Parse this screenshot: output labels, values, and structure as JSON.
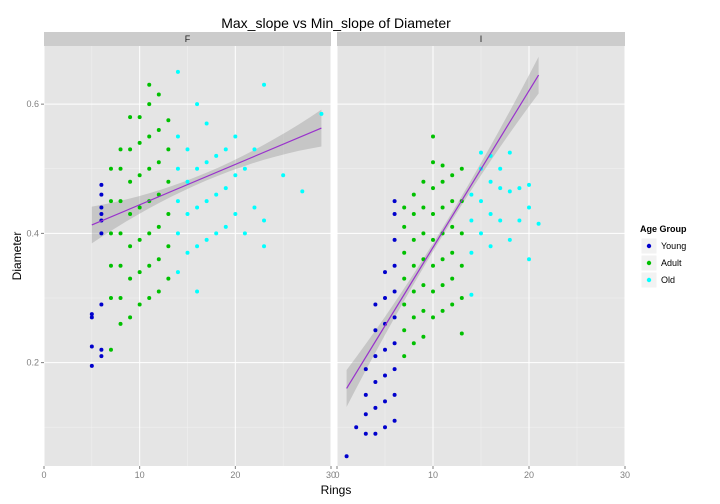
{
  "chart_data": {
    "type": "scatter",
    "title": "Max_slope vs Min_slope of Diameter",
    "xlabel": "Rings",
    "ylabel": "Diameter",
    "xlim": [
      0,
      30
    ],
    "ylim": [
      0.04,
      0.69
    ],
    "x_ticks": [
      0,
      10,
      20,
      30
    ],
    "y_ticks": [
      0.2,
      0.4,
      0.6
    ],
    "x_tick_labels": [
      "0",
      "10",
      "20",
      "30"
    ],
    "y_tick_labels": [
      "0.2",
      "0.4",
      "0.6"
    ],
    "grid": true,
    "legend": {
      "title": "Age Group",
      "position": "right",
      "entries": [
        {
          "name": "Young",
          "color": "#0000cc"
        },
        {
          "name": "Adult",
          "color": "#00c000"
        },
        {
          "name": "Old",
          "color": "#00ffff"
        }
      ]
    },
    "panels": [
      {
        "label": "F",
        "trend_line": {
          "x": [
            5,
            29
          ],
          "y": [
            0.413,
            0.563
          ],
          "color": "#9932cc"
        },
        "series": [
          {
            "name": "Young",
            "color": "#0000cc",
            "points": [
              [
                5,
                0.195
              ],
              [
                5,
                0.225
              ],
              [
                5,
                0.27
              ],
              [
                5,
                0.275
              ],
              [
                6,
                0.21
              ],
              [
                6,
                0.22
              ],
              [
                6,
                0.29
              ],
              [
                6,
                0.4
              ],
              [
                6,
                0.42
              ],
              [
                6,
                0.43
              ],
              [
                6,
                0.44
              ],
              [
                6,
                0.46
              ],
              [
                6,
                0.475
              ]
            ]
          },
          {
            "name": "Adult",
            "color": "#00c000",
            "points": [
              [
                7,
                0.22
              ],
              [
                7,
                0.3
              ],
              [
                7,
                0.35
              ],
              [
                7,
                0.4
              ],
              [
                7,
                0.45
              ],
              [
                7,
                0.5
              ],
              [
                8,
                0.26
              ],
              [
                8,
                0.3
              ],
              [
                8,
                0.35
              ],
              [
                8,
                0.4
              ],
              [
                8,
                0.45
              ],
              [
                8,
                0.5
              ],
              [
                8,
                0.53
              ],
              [
                9,
                0.27
              ],
              [
                9,
                0.33
              ],
              [
                9,
                0.38
              ],
              [
                9,
                0.43
              ],
              [
                9,
                0.48
              ],
              [
                9,
                0.53
              ],
              [
                9,
                0.58
              ],
              [
                10,
                0.29
              ],
              [
                10,
                0.34
              ],
              [
                10,
                0.39
              ],
              [
                10,
                0.44
              ],
              [
                10,
                0.49
              ],
              [
                10,
                0.54
              ],
              [
                10,
                0.58
              ],
              [
                11,
                0.3
              ],
              [
                11,
                0.35
              ],
              [
                11,
                0.4
              ],
              [
                11,
                0.45
              ],
              [
                11,
                0.5
              ],
              [
                11,
                0.55
              ],
              [
                11,
                0.6
              ],
              [
                11,
                0.63
              ],
              [
                12,
                0.31
              ],
              [
                12,
                0.36
              ],
              [
                12,
                0.41
              ],
              [
                12,
                0.46
              ],
              [
                12,
                0.51
              ],
              [
                12,
                0.56
              ],
              [
                12,
                0.615
              ],
              [
                13,
                0.33
              ],
              [
                13,
                0.38
              ],
              [
                13,
                0.43
              ],
              [
                13,
                0.48
              ],
              [
                13,
                0.53
              ],
              [
                13,
                0.575
              ]
            ]
          },
          {
            "name": "Old",
            "color": "#00ffff",
            "points": [
              [
                14,
                0.34
              ],
              [
                14,
                0.4
              ],
              [
                14,
                0.45
              ],
              [
                14,
                0.5
              ],
              [
                14,
                0.55
              ],
              [
                14,
                0.65
              ],
              [
                15,
                0.37
              ],
              [
                15,
                0.43
              ],
              [
                15,
                0.48
              ],
              [
                15,
                0.53
              ],
              [
                16,
                0.31
              ],
              [
                16,
                0.38
              ],
              [
                16,
                0.44
              ],
              [
                16,
                0.5
              ],
              [
                16,
                0.6
              ],
              [
                17,
                0.39
              ],
              [
                17,
                0.45
              ],
              [
                17,
                0.51
              ],
              [
                17,
                0.57
              ],
              [
                18,
                0.4
              ],
              [
                18,
                0.46
              ],
              [
                18,
                0.52
              ],
              [
                19,
                0.41
              ],
              [
                19,
                0.47
              ],
              [
                19,
                0.53
              ],
              [
                20,
                0.43
              ],
              [
                20,
                0.49
              ],
              [
                20,
                0.55
              ],
              [
                21,
                0.4
              ],
              [
                21,
                0.5
              ],
              [
                22,
                0.44
              ],
              [
                22,
                0.53
              ],
              [
                23,
                0.38
              ],
              [
                23,
                0.42
              ],
              [
                23,
                0.63
              ],
              [
                25,
                0.49
              ],
              [
                27,
                0.465
              ],
              [
                29,
                0.585
              ]
            ]
          }
        ]
      },
      {
        "label": "I",
        "trend_line": {
          "x": [
            1,
            21
          ],
          "y": [
            0.16,
            0.645
          ],
          "color": "#9932cc"
        },
        "series": [
          {
            "name": "Young",
            "color": "#0000cc",
            "points": [
              [
                1,
                0.055
              ],
              [
                2,
                0.1
              ],
              [
                3,
                0.09
              ],
              [
                3,
                0.12
              ],
              [
                3,
                0.15
              ],
              [
                3,
                0.19
              ],
              [
                4,
                0.09
              ],
              [
                4,
                0.13
              ],
              [
                4,
                0.17
              ],
              [
                4,
                0.21
              ],
              [
                4,
                0.25
              ],
              [
                4,
                0.29
              ],
              [
                5,
                0.1
              ],
              [
                5,
                0.14
              ],
              [
                5,
                0.18
              ],
              [
                5,
                0.22
              ],
              [
                5,
                0.26
              ],
              [
                5,
                0.3
              ],
              [
                5,
                0.34
              ],
              [
                6,
                0.11
              ],
              [
                6,
                0.15
              ],
              [
                6,
                0.19
              ],
              [
                6,
                0.23
              ],
              [
                6,
                0.27
              ],
              [
                6,
                0.31
              ],
              [
                6,
                0.35
              ],
              [
                6,
                0.39
              ],
              [
                6,
                0.43
              ],
              [
                6,
                0.45
              ]
            ]
          },
          {
            "name": "Adult",
            "color": "#00c000",
            "points": [
              [
                7,
                0.21
              ],
              [
                7,
                0.25
              ],
              [
                7,
                0.29
              ],
              [
                7,
                0.33
              ],
              [
                7,
                0.37
              ],
              [
                7,
                0.41
              ],
              [
                7,
                0.44
              ],
              [
                8,
                0.23
              ],
              [
                8,
                0.27
              ],
              [
                8,
                0.31
              ],
              [
                8,
                0.35
              ],
              [
                8,
                0.39
              ],
              [
                8,
                0.43
              ],
              [
                8,
                0.46
              ],
              [
                9,
                0.24
              ],
              [
                9,
                0.28
              ],
              [
                9,
                0.32
              ],
              [
                9,
                0.36
              ],
              [
                9,
                0.4
              ],
              [
                9,
                0.44
              ],
              [
                9,
                0.48
              ],
              [
                10,
                0.27
              ],
              [
                10,
                0.31
              ],
              [
                10,
                0.35
              ],
              [
                10,
                0.39
              ],
              [
                10,
                0.43
              ],
              [
                10,
                0.47
              ],
              [
                10,
                0.51
              ],
              [
                10,
                0.55
              ],
              [
                11,
                0.28
              ],
              [
                11,
                0.32
              ],
              [
                11,
                0.36
              ],
              [
                11,
                0.4
              ],
              [
                11,
                0.44
              ],
              [
                11,
                0.48
              ],
              [
                11,
                0.505
              ],
              [
                12,
                0.29
              ],
              [
                12,
                0.33
              ],
              [
                12,
                0.37
              ],
              [
                12,
                0.41
              ],
              [
                12,
                0.45
              ],
              [
                12,
                0.49
              ],
              [
                13,
                0.245
              ],
              [
                13,
                0.3
              ],
              [
                13,
                0.35
              ],
              [
                13,
                0.4
              ],
              [
                13,
                0.45
              ],
              [
                13,
                0.5
              ]
            ]
          },
          {
            "name": "Old",
            "color": "#00ffff",
            "points": [
              [
                14,
                0.305
              ],
              [
                14,
                0.37
              ],
              [
                14,
                0.42
              ],
              [
                14,
                0.46
              ],
              [
                15,
                0.4
              ],
              [
                15,
                0.45
              ],
              [
                15,
                0.5
              ],
              [
                15,
                0.525
              ],
              [
                16,
                0.38
              ],
              [
                16,
                0.43
              ],
              [
                16,
                0.48
              ],
              [
                16,
                0.52
              ],
              [
                17,
                0.42
              ],
              [
                17,
                0.47
              ],
              [
                17,
                0.5
              ],
              [
                18,
                0.39
              ],
              [
                18,
                0.465
              ],
              [
                18,
                0.525
              ],
              [
                19,
                0.42
              ],
              [
                19,
                0.47
              ],
              [
                20,
                0.36
              ],
              [
                20,
                0.44
              ],
              [
                20,
                0.475
              ],
              [
                21,
                0.415
              ]
            ]
          }
        ]
      }
    ]
  }
}
